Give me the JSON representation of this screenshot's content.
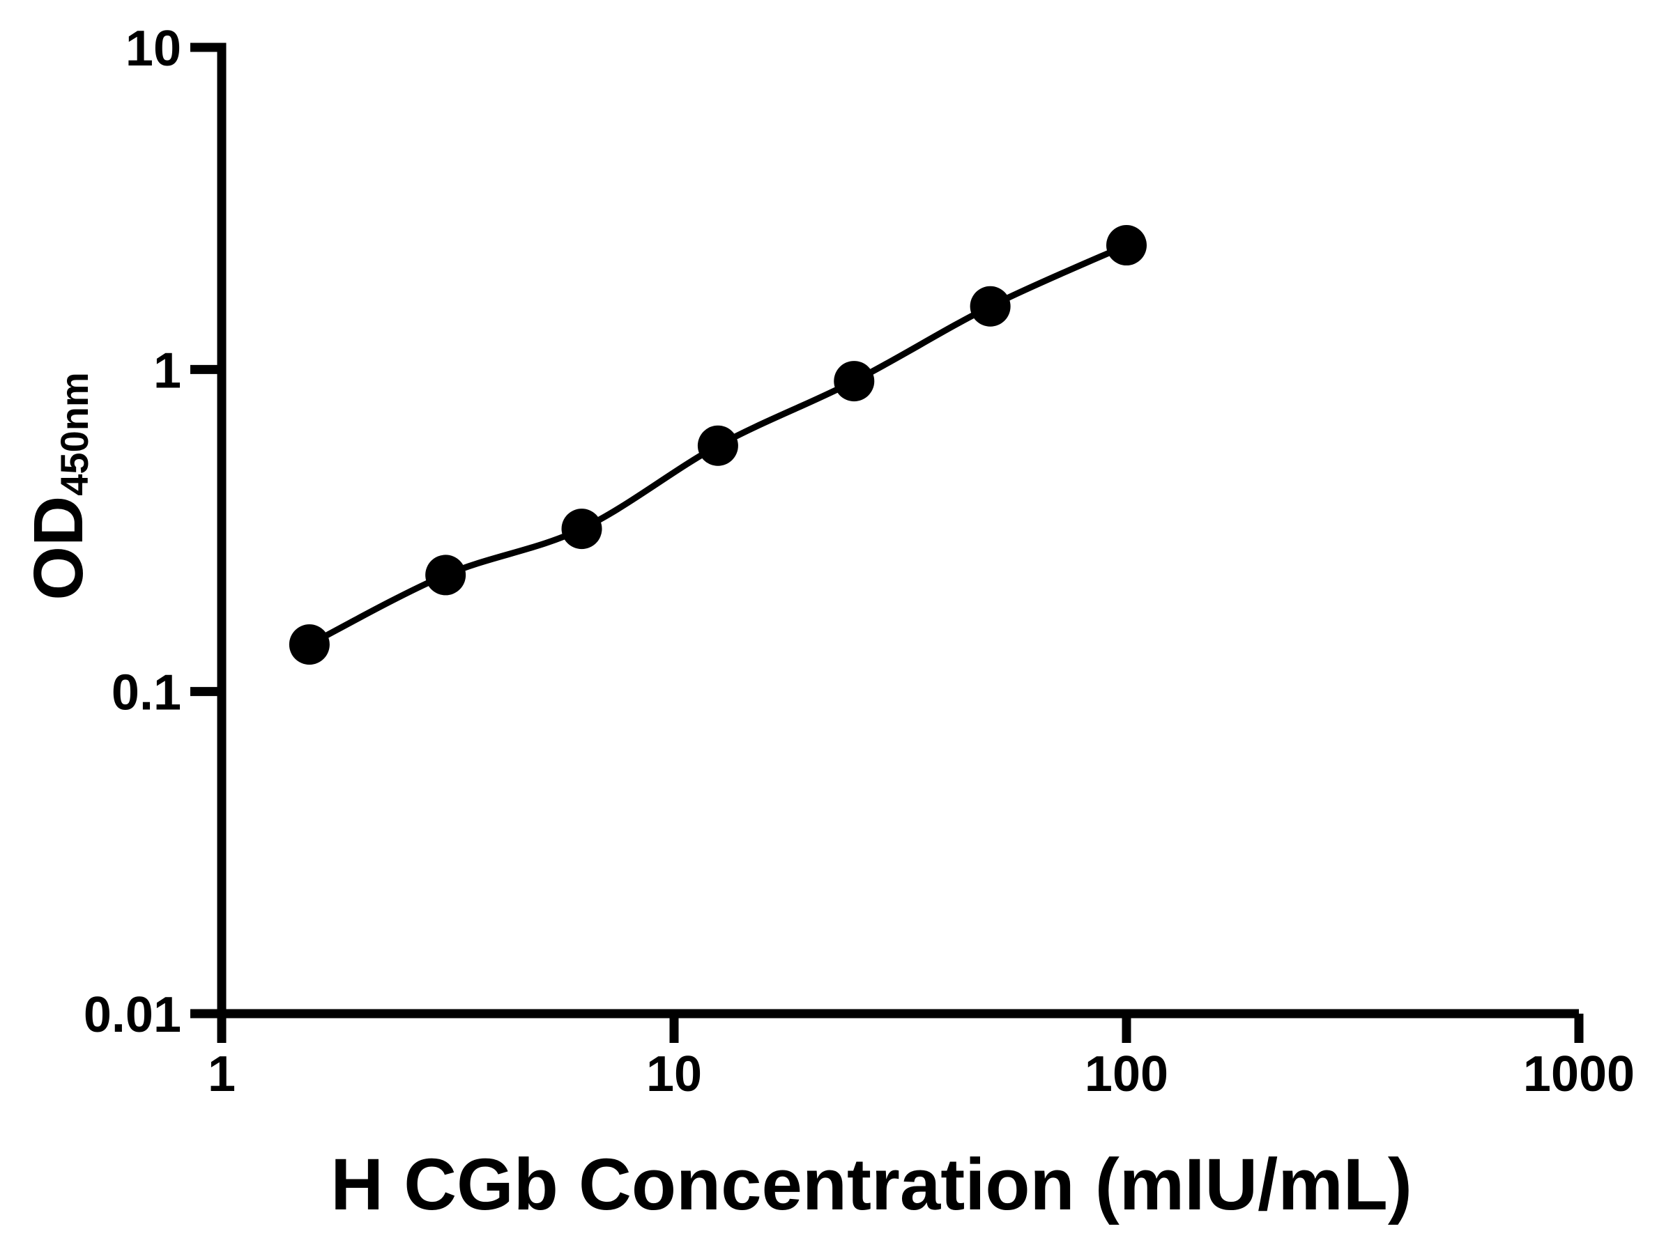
{
  "figure": {
    "background": "#ffffff"
  },
  "chart_data": {
    "type": "scatter-line",
    "title": "",
    "xlabel": "H CGb Concentration (mIU/mL)",
    "ylabel_main": "OD",
    "ylabel_sub": "450nm",
    "x_scale": "log",
    "y_scale": "log",
    "xlim": [
      1,
      1000
    ],
    "ylim": [
      0.01,
      10
    ],
    "grid": false,
    "legend": null,
    "x": [
      1.563,
      3.125,
      6.25,
      12.5,
      25,
      50,
      100
    ],
    "y": [
      0.14,
      0.23,
      0.32,
      0.58,
      0.92,
      1.57,
      2.43
    ],
    "x_ticks": [
      {
        "value": 1,
        "label": "1"
      },
      {
        "value": 10,
        "label": "10"
      },
      {
        "value": 100,
        "label": "100"
      },
      {
        "value": 1000,
        "label": "1000"
      }
    ],
    "y_ticks": [
      {
        "value": 10,
        "label": "10"
      },
      {
        "value": 1,
        "label": "1"
      },
      {
        "value": 0.1,
        "label": "0.1"
      },
      {
        "value": 0.01,
        "label": "0.01"
      }
    ],
    "marker_color": "#000000",
    "line_color": "#000000",
    "axis_color": "#000000"
  }
}
